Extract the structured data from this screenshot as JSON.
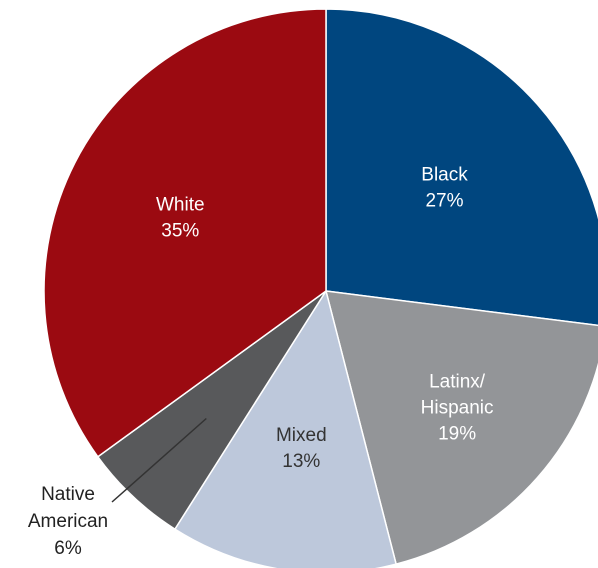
{
  "chart_data": {
    "type": "pie",
    "slices": [
      {
        "label": "Black",
        "value": 27,
        "pct_text": "27%",
        "color": "#00467f",
        "text_color": "#ffffff"
      },
      {
        "label": "Latinx/ Hispanic",
        "value": 19,
        "pct_text": "19%",
        "color": "#939598",
        "text_color": "#ffffff"
      },
      {
        "label": "Mixed",
        "value": 13,
        "pct_text": "13%",
        "color": "#bdc8db",
        "text_color": "#333333"
      },
      {
        "label": "Native American",
        "value": 6,
        "pct_text": "6%",
        "color": "#58595b",
        "text_color": "#222222"
      },
      {
        "label": "White",
        "value": 35,
        "pct_text": "35%",
        "color": "#9b0a11",
        "text_color": "#ffffff"
      }
    ]
  }
}
